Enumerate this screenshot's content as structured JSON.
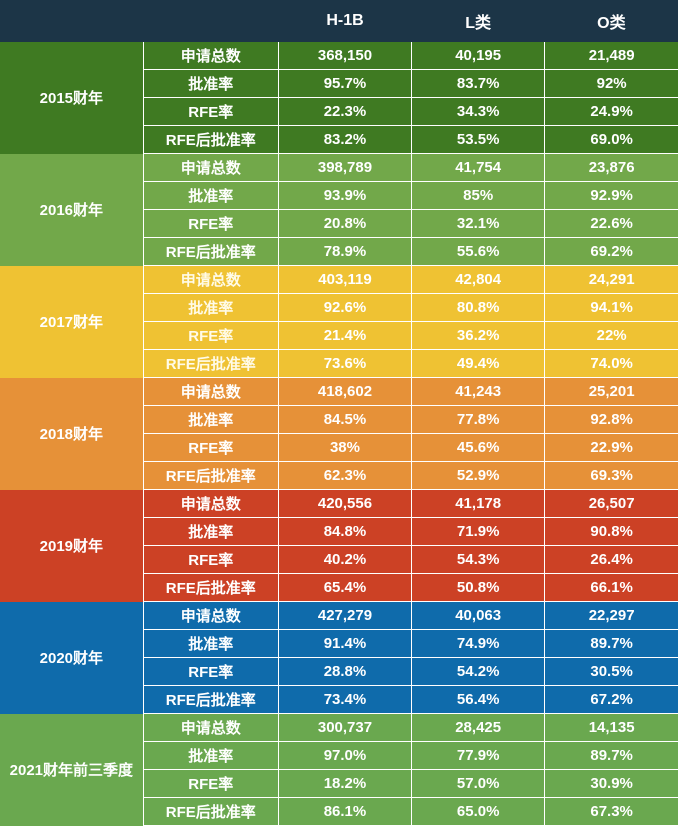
{
  "header": {
    "col_year": "",
    "col_label": "",
    "col_h1b": "H-1B",
    "col_l": "L类",
    "col_o": "O类"
  },
  "metric_labels": [
    "申请总数",
    "批准率",
    "RFE率",
    "RFE后批准率"
  ],
  "colors": {
    "header": "#1c3547",
    "fy2015": "#3f7a22",
    "fy2016": "#72a84a",
    "fy2017": "#efc233",
    "fy2018": "#e69138",
    "fy2019": "#cc4125",
    "fy2020": "#0f6bab",
    "fy2021q3": "#6aa84f"
  },
  "groups": [
    {
      "year": "2015财年",
      "rows": [
        {
          "label": "申请总数",
          "h1b": "368,150",
          "l": "40,195",
          "o": "21,489"
        },
        {
          "label": "批准率",
          "h1b": "95.7%",
          "l": "83.7%",
          "o": "92%"
        },
        {
          "label": "RFE率",
          "h1b": "22.3%",
          "l": "34.3%",
          "o": "24.9%"
        },
        {
          "label": "RFE后批准率",
          "h1b": "83.2%",
          "l": "53.5%",
          "o": "69.0%"
        }
      ]
    },
    {
      "year": "2016财年",
      "rows": [
        {
          "label": "申请总数",
          "h1b": "398,789",
          "l": "41,754",
          "o": "23,876"
        },
        {
          "label": "批准率",
          "h1b": "93.9%",
          "l": "85%",
          "o": "92.9%"
        },
        {
          "label": "RFE率",
          "h1b": "20.8%",
          "l": "32.1%",
          "o": "22.6%"
        },
        {
          "label": "RFE后批准率",
          "h1b": "78.9%",
          "l": "55.6%",
          "o": "69.2%"
        }
      ]
    },
    {
      "year": "2017财年",
      "rows": [
        {
          "label": "申请总数",
          "h1b": "403,119",
          "l": "42,804",
          "o": "24,291"
        },
        {
          "label": "批准率",
          "h1b": "92.6%",
          "l": "80.8%",
          "o": "94.1%"
        },
        {
          "label": "RFE率",
          "h1b": "21.4%",
          "l": "36.2%",
          "o": "22%"
        },
        {
          "label": "RFE后批准率",
          "h1b": "73.6%",
          "l": "49.4%",
          "o": "74.0%"
        }
      ]
    },
    {
      "year": "2018财年",
      "rows": [
        {
          "label": "申请总数",
          "h1b": "418,602",
          "l": "41,243",
          "o": "25,201"
        },
        {
          "label": "批准率",
          "h1b": "84.5%",
          "l": "77.8%",
          "o": "92.8%"
        },
        {
          "label": "RFE率",
          "h1b": "38%",
          "l": "45.6%",
          "o": "22.9%"
        },
        {
          "label": "RFE后批准率",
          "h1b": "62.3%",
          "l": "52.9%",
          "o": "69.3%"
        }
      ]
    },
    {
      "year": "2019财年",
      "rows": [
        {
          "label": "申请总数",
          "h1b": "420,556",
          "l": "41,178",
          "o": "26,507"
        },
        {
          "label": "批准率",
          "h1b": "84.8%",
          "l": "71.9%",
          "o": "90.8%"
        },
        {
          "label": "RFE率",
          "h1b": "40.2%",
          "l": "54.3%",
          "o": "26.4%"
        },
        {
          "label": "RFE后批准率",
          "h1b": "65.4%",
          "l": "50.8%",
          "o": "66.1%"
        }
      ]
    },
    {
      "year": "2020财年",
      "rows": [
        {
          "label": "申请总数",
          "h1b": "427,279",
          "l": "40,063",
          "o": "22,297"
        },
        {
          "label": "批准率",
          "h1b": "91.4%",
          "l": "74.9%",
          "o": "89.7%"
        },
        {
          "label": "RFE率",
          "h1b": "28.8%",
          "l": "54.2%",
          "o": "30.5%"
        },
        {
          "label": "RFE后批准率",
          "h1b": "73.4%",
          "l": "56.4%",
          "o": "67.2%"
        }
      ]
    },
    {
      "year": "2021财年前三季度",
      "rows": [
        {
          "label": "申请总数",
          "h1b": "300,737",
          "l": "28,425",
          "o": "14,135"
        },
        {
          "label": "批准率",
          "h1b": "97.0%",
          "l": "77.9%",
          "o": "89.7%"
        },
        {
          "label": "RFE率",
          "h1b": "18.2%",
          "l": "57.0%",
          "o": "30.9%"
        },
        {
          "label": "RFE后批准率",
          "h1b": "86.1%",
          "l": "65.0%",
          "o": "67.3%"
        }
      ]
    }
  ]
}
